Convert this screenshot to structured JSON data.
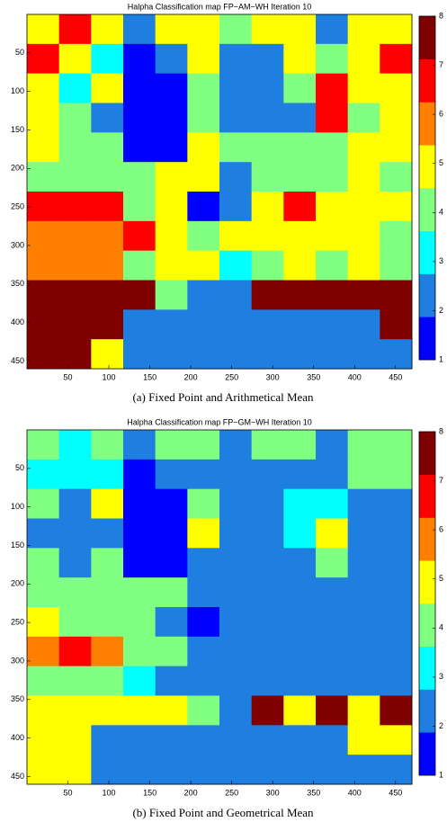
{
  "chart_data": [
    {
      "type": "heatmap",
      "title": "Halpha Classification map FP−AM−WH Iteration 10",
      "caption": "(a)  Fixed Point and Arithmetical Mean",
      "xlim": [
        0,
        470
      ],
      "ylim": [
        0,
        460
      ],
      "y_reversed": true,
      "xticks": [
        50,
        100,
        150,
        200,
        250,
        300,
        350,
        400,
        450
      ],
      "yticks": [
        50,
        100,
        150,
        200,
        250,
        300,
        350,
        400,
        450
      ],
      "colors": [
        "#0000ff",
        "#1f7fe0",
        "#00ffff",
        "#80ff80",
        "#ffff00",
        "#ff8000",
        "#ff0000",
        "#800000"
      ],
      "clim": [
        1,
        8
      ],
      "colorbar_ticks": [
        1,
        2,
        3,
        4,
        5,
        6,
        7,
        8
      ],
      "values": [
        [
          5,
          7,
          5,
          2,
          5,
          5,
          4,
          5,
          5,
          2,
          5,
          5
        ],
        [
          7,
          5,
          3,
          1,
          2,
          5,
          2,
          2,
          5,
          4,
          5,
          7
        ],
        [
          5,
          3,
          5,
          1,
          1,
          4,
          2,
          2,
          4,
          7,
          5,
          5
        ],
        [
          5,
          4,
          2,
          1,
          1,
          4,
          2,
          2,
          2,
          7,
          4,
          5
        ],
        [
          5,
          4,
          4,
          1,
          1,
          5,
          4,
          4,
          4,
          4,
          5,
          5
        ],
        [
          4,
          4,
          4,
          4,
          5,
          5,
          2,
          4,
          4,
          4,
          5,
          4
        ],
        [
          7,
          7,
          7,
          4,
          5,
          1,
          2,
          5,
          7,
          5,
          5,
          5
        ],
        [
          6,
          6,
          6,
          7,
          5,
          4,
          5,
          5,
          5,
          5,
          5,
          4
        ],
        [
          6,
          6,
          6,
          4,
          5,
          5,
          3,
          4,
          5,
          4,
          5,
          4
        ],
        [
          8,
          8,
          8,
          8,
          4,
          2,
          2,
          8,
          8,
          8,
          8,
          8
        ],
        [
          8,
          8,
          8,
          2,
          2,
          2,
          2,
          2,
          2,
          2,
          2,
          8
        ],
        [
          8,
          8,
          5,
          2,
          2,
          2,
          2,
          2,
          2,
          2,
          2,
          2
        ]
      ]
    },
    {
      "type": "heatmap",
      "title": "Halpha Classification map FP−GM−WH Iteration 10",
      "caption": "(b)  Fixed Point and Geometrical Mean",
      "xlim": [
        0,
        470
      ],
      "ylim": [
        0,
        460
      ],
      "y_reversed": true,
      "xticks": [
        50,
        100,
        150,
        200,
        250,
        300,
        350,
        400,
        450
      ],
      "yticks": [
        50,
        100,
        150,
        200,
        250,
        300,
        350,
        400,
        450
      ],
      "colors": [
        "#0000ff",
        "#1f7fe0",
        "#00ffff",
        "#80ff80",
        "#ffff00",
        "#ff8000",
        "#ff0000",
        "#800000"
      ],
      "clim": [
        1,
        8
      ],
      "colorbar_ticks": [
        1,
        2,
        3,
        4,
        5,
        6,
        7,
        8
      ],
      "values": [
        [
          4,
          3,
          4,
          2,
          4,
          4,
          2,
          4,
          4,
          2,
          4,
          4
        ],
        [
          3,
          3,
          3,
          1,
          2,
          2,
          2,
          2,
          2,
          2,
          4,
          4
        ],
        [
          4,
          2,
          5,
          1,
          1,
          4,
          2,
          2,
          3,
          3,
          2,
          2
        ],
        [
          2,
          2,
          2,
          1,
          1,
          5,
          2,
          2,
          3,
          5,
          2,
          2
        ],
        [
          4,
          2,
          4,
          1,
          1,
          2,
          2,
          2,
          2,
          4,
          2,
          2
        ],
        [
          4,
          4,
          4,
          4,
          4,
          2,
          2,
          2,
          2,
          2,
          2,
          2
        ],
        [
          5,
          4,
          4,
          4,
          2,
          1,
          2,
          2,
          2,
          2,
          2,
          2
        ],
        [
          6,
          7,
          6,
          4,
          4,
          2,
          2,
          2,
          2,
          2,
          2,
          2
        ],
        [
          4,
          4,
          4,
          3,
          2,
          2,
          2,
          2,
          2,
          2,
          2,
          2
        ],
        [
          5,
          5,
          5,
          5,
          5,
          4,
          2,
          8,
          5,
          8,
          5,
          8
        ],
        [
          5,
          5,
          2,
          2,
          2,
          2,
          2,
          2,
          2,
          2,
          5,
          5
        ],
        [
          5,
          5,
          2,
          2,
          2,
          2,
          2,
          2,
          2,
          2,
          2,
          2
        ]
      ]
    }
  ]
}
